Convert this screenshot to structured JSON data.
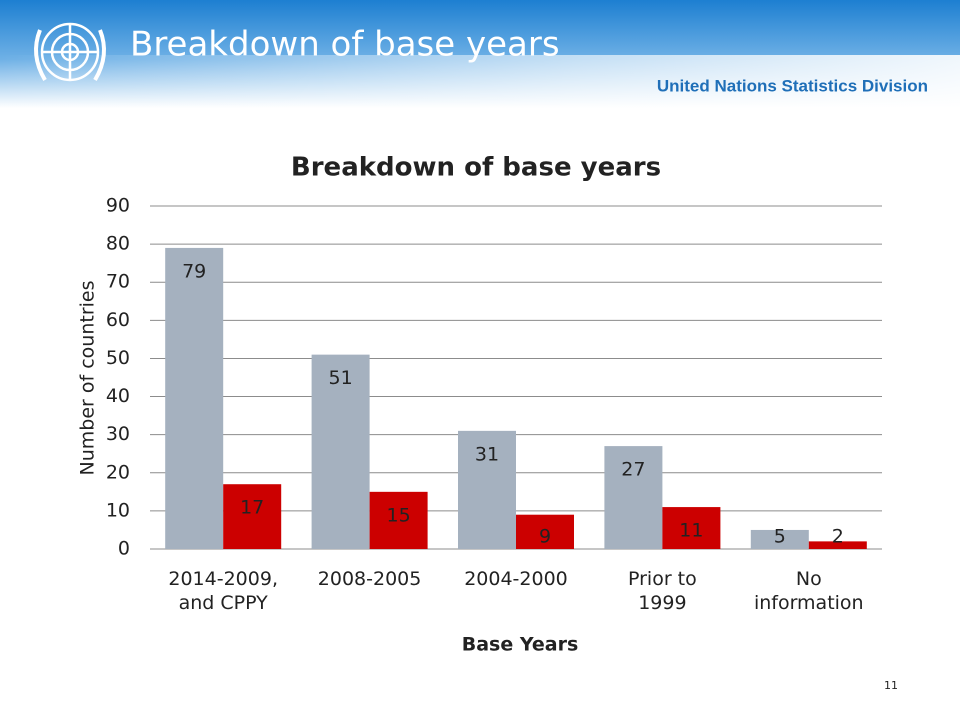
{
  "slide": {
    "title": "Breakdown of base years",
    "organization": "United Nations Statistics Division",
    "page_number": "11"
  },
  "chart_data": {
    "type": "bar",
    "title": "Breakdown of base years",
    "x_label": "Base Years",
    "y_label": "Number of countries",
    "categories": [
      "2014-2009, and CPPY",
      "2008-2005",
      "2004-2000",
      "Prior to 1999",
      "No information"
    ],
    "series": [
      {
        "color": "#a5b1bf",
        "values": [
          79,
          51,
          31,
          27,
          5
        ]
      },
      {
        "color": "#cc0000",
        "values": [
          17,
          15,
          9,
          11,
          2
        ]
      }
    ],
    "ylim": [
      0,
      90
    ],
    "yticks": [
      0,
      10,
      20,
      30,
      40,
      50,
      60,
      70,
      80,
      90
    ],
    "grid": true
  }
}
